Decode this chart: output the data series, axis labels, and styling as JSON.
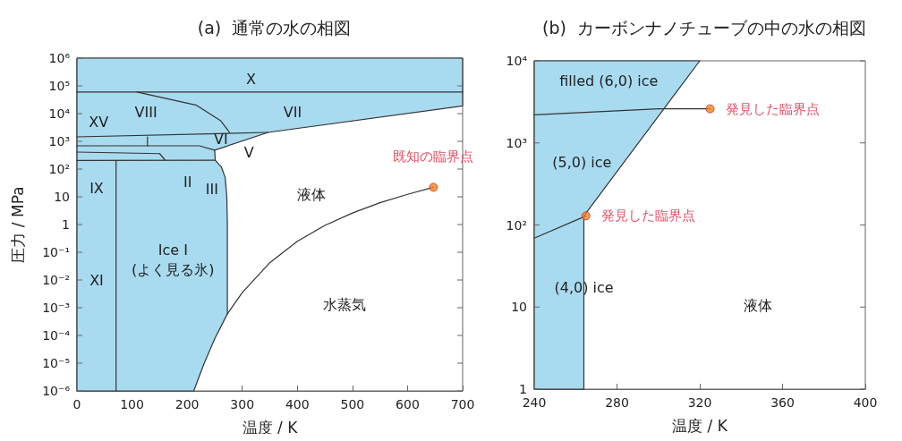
{
  "chart_data": [
    {
      "type": "line",
      "title": "(a)  通常の水の相図",
      "xlabel": "温度 / K",
      "ylabel": "圧力 / MPa",
      "log": "y",
      "grid": false,
      "legend": false,
      "line_style": "solid",
      "xlim": [
        0,
        700
      ],
      "xticks": [
        0,
        100,
        200,
        300,
        400,
        500,
        600,
        700
      ],
      "ylim": [
        1e-06,
        1000000
      ],
      "yticks": [
        {
          "value": 1e-06,
          "label": "10⁻⁶"
        },
        {
          "value": 1e-05,
          "label": "10⁻⁵"
        },
        {
          "value": 0.0001,
          "label": "10⁻⁴"
        },
        {
          "value": 0.001,
          "label": "10⁻³"
        },
        {
          "value": 0.01,
          "label": "10⁻²"
        },
        {
          "value": 0.1,
          "label": "10⁻¹"
        },
        {
          "value": 1,
          "label": "1"
        },
        {
          "value": 10,
          "label": "10"
        },
        {
          "value": 100,
          "label": "10²"
        },
        {
          "value": 1000,
          "label": "10³"
        },
        {
          "value": 10000,
          "label": "10⁴"
        },
        {
          "value": 100000,
          "label": "10⁵"
        },
        {
          "value": 1000000,
          "label": "10⁶"
        }
      ],
      "series": [
        {
          "type": "area",
          "color": "#a9dbf0",
          "x": [
            0,
            212,
            230,
            250,
            273,
            273,
            272,
            269,
            262,
            251,
            250,
            347,
            700,
            700,
            0
          ],
          "values": [
            1e-06,
            1e-06,
            9e-06,
            7.6e-05,
            0.0006,
            1,
            10,
            50,
            120,
            209,
            480,
            2100,
            19000,
            1000000,
            1000000
          ]
        },
        {
          "color": "#333333",
          "x": [
            0,
            700
          ],
          "values": [
            60000,
            60000
          ]
        },
        {
          "color": "#333333",
          "x": [
            109,
            217,
            261,
            277
          ],
          "values": [
            60000,
            20000,
            5500,
            2100
          ]
        },
        {
          "color": "#333333",
          "x": [
            0,
            347
          ],
          "values": [
            1450,
            2100
          ]
        },
        {
          "color": "#333333",
          "x": [
            0,
            222,
            250
          ],
          "values": [
            690,
            690,
            480
          ]
        },
        {
          "color": "#333333",
          "x": [
            128,
            128
          ],
          "values": [
            690,
            1450
          ]
        },
        {
          "color": "#333333",
          "x": [
            0,
            150,
            160
          ],
          "values": [
            410,
            360,
            210
          ]
        },
        {
          "color": "#333333",
          "x": [
            0,
            251
          ],
          "values": [
            205,
            209
          ]
        },
        {
          "color": "#333333",
          "x": [
            71,
            71
          ],
          "values": [
            1e-06,
            205
          ]
        },
        {
          "color": "#333333",
          "x": [
            273,
            300,
            350,
            400,
            450,
            500,
            550,
            600,
            647
          ],
          "values": [
            0.0006,
            0.0035,
            0.042,
            0.25,
            0.93,
            2.6,
            6.1,
            12.3,
            22
          ]
        },
        {
          "type": "scatter",
          "name": "既知の臨界点",
          "color": "#f58220",
          "x": [
            647
          ],
          "values": [
            22
          ]
        }
      ],
      "annotations": [
        "X",
        "VIII",
        "VII",
        "XV",
        "VI",
        "V",
        "IX",
        "II",
        "III",
        "液体",
        "XI",
        "Ice I\n(よく見る氷)",
        "水蒸気"
      ]
    },
    {
      "type": "line",
      "title": "(b)  カーボンナノチューブの中の水の相図",
      "xlabel": "温度 / K",
      "log": "y",
      "grid": false,
      "legend": false,
      "line_style": "solid",
      "xlim": [
        240,
        400
      ],
      "xticks": [
        240,
        280,
        320,
        360,
        400
      ],
      "ylim": [
        1,
        10000
      ],
      "yticks": [
        {
          "value": 1,
          "label": "1"
        },
        {
          "value": 10,
          "label": "10"
        },
        {
          "value": 100,
          "label": "10²"
        },
        {
          "value": 1000,
          "label": "10³"
        },
        {
          "value": 10000,
          "label": "10⁴"
        }
      ],
      "series": [
        {
          "type": "area",
          "color": "#a9dbf0",
          "x": [
            240,
            264,
            264,
            320,
            240
          ],
          "values": [
            1,
            1,
            129,
            10000,
            10000
          ]
        },
        {
          "color": "#333333",
          "x": [
            240,
            265
          ],
          "values": [
            69,
            129
          ]
        },
        {
          "color": "#333333",
          "x": [
            240,
            300,
            325
          ],
          "values": [
            2200,
            2600,
            2600
          ]
        },
        {
          "type": "scatter",
          "name": "発見した臨界点",
          "color": "#f58220",
          "x": [
            265,
            325
          ],
          "values": [
            129,
            2600
          ]
        }
      ],
      "annotations": [
        "filled (6,0) ice",
        "(5,0) ice",
        "(4,0) ice",
        "液体"
      ]
    }
  ]
}
